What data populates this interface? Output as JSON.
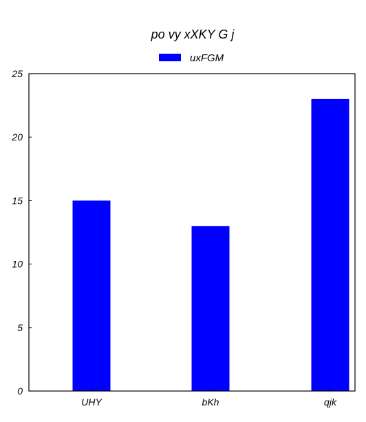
{
  "chart_data": {
    "type": "bar",
    "title": "po vy xXKY G j",
    "xlabel": "",
    "ylabel": "",
    "categories": [
      "UHY",
      "bKh",
      "qjk"
    ],
    "series": [
      {
        "name": "uxFGM",
        "values": [
          15,
          13,
          23
        ],
        "color": "#0000ff"
      }
    ],
    "ylim": [
      0,
      25
    ],
    "yticks": [
      "0",
      "5",
      "10",
      "15",
      "20",
      "25"
    ],
    "legend_position": "top-center",
    "grid": false
  }
}
